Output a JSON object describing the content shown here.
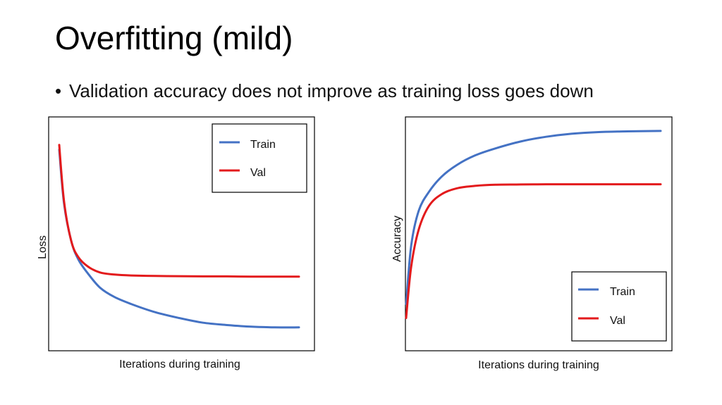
{
  "slide": {
    "title": "Overfitting (mild)",
    "bullet": "Validation accuracy does not improve as training loss goes down"
  },
  "chart_data": [
    {
      "type": "line",
      "xlabel": "Iterations during training",
      "ylabel": "Loss",
      "xlim": [
        0,
        1
      ],
      "ylim": [
        0,
        1
      ],
      "legend": "top-right",
      "series": [
        {
          "name": "Train",
          "color": "#4472C4",
          "x": [
            0,
            0.02,
            0.05,
            0.08,
            0.12,
            0.17,
            0.23,
            0.3,
            0.4,
            0.5,
            0.6,
            0.7,
            0.8,
            0.9,
            1.0
          ],
          "y": [
            0.86,
            0.63,
            0.47,
            0.39,
            0.33,
            0.27,
            0.23,
            0.2,
            0.165,
            0.14,
            0.12,
            0.11,
            0.103,
            0.1,
            0.1
          ]
        },
        {
          "name": "Val",
          "color": "#E31A1C",
          "x": [
            0,
            0.02,
            0.05,
            0.08,
            0.12,
            0.17,
            0.23,
            0.3,
            0.4,
            0.5,
            0.6,
            0.7,
            0.8,
            0.9,
            1.0
          ],
          "y": [
            0.88,
            0.64,
            0.47,
            0.4,
            0.36,
            0.335,
            0.326,
            0.322,
            0.32,
            0.319,
            0.318,
            0.318,
            0.317,
            0.317,
            0.317
          ]
        }
      ]
    },
    {
      "type": "line",
      "xlabel": "Iterations during training",
      "ylabel": "Accuracy",
      "xlim": [
        0,
        1
      ],
      "ylim": [
        0,
        1
      ],
      "legend": "bottom-right",
      "series": [
        {
          "name": "Train",
          "color": "#4472C4",
          "x": [
            0,
            0.02,
            0.05,
            0.09,
            0.14,
            0.2,
            0.27,
            0.35,
            0.45,
            0.55,
            0.65,
            0.75,
            0.85,
            1.0
          ],
          "y": [
            0.2,
            0.45,
            0.6,
            0.68,
            0.745,
            0.795,
            0.835,
            0.865,
            0.895,
            0.915,
            0.928,
            0.935,
            0.938,
            0.94
          ]
        },
        {
          "name": "Val",
          "color": "#E31A1C",
          "x": [
            0,
            0.02,
            0.05,
            0.09,
            0.14,
            0.2,
            0.27,
            0.35,
            0.45,
            0.55,
            0.65,
            0.75,
            0.85,
            1.0
          ],
          "y": [
            0.14,
            0.36,
            0.52,
            0.62,
            0.67,
            0.695,
            0.705,
            0.71,
            0.711,
            0.712,
            0.712,
            0.712,
            0.712,
            0.712
          ]
        }
      ]
    }
  ]
}
